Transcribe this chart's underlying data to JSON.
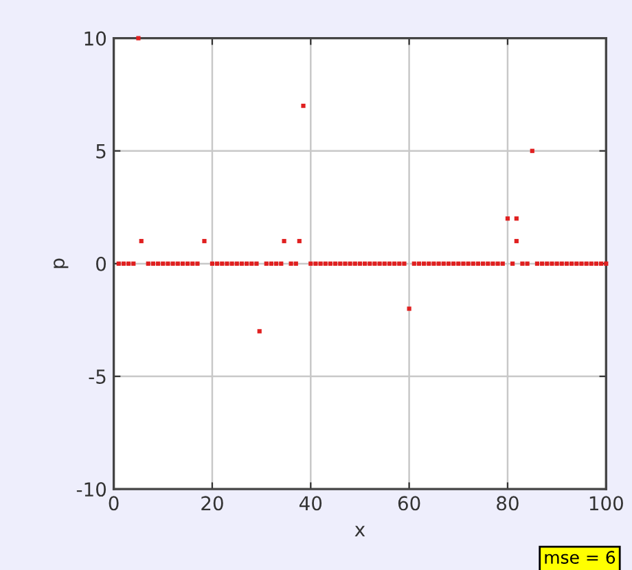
{
  "chart_data": {
    "type": "scatter",
    "xlabel": "x",
    "ylabel": "p",
    "xlim": [
      0,
      100
    ],
    "ylim": [
      -10,
      10
    ],
    "xticks": [
      0,
      20,
      40,
      60,
      80,
      100
    ],
    "yticks": [
      -10,
      -5,
      0,
      5,
      10
    ],
    "grid": true,
    "marker": "square",
    "annotations": [
      "mse = 6"
    ],
    "series": [
      {
        "color": "#e02020",
        "x": [
          1,
          2,
          3,
          4,
          7,
          8,
          9,
          10,
          11,
          12,
          13,
          14,
          15,
          16,
          17,
          20,
          21,
          22,
          23,
          24,
          25,
          26,
          27,
          28,
          29,
          31,
          32,
          33,
          34,
          36,
          37,
          40,
          41,
          42,
          43,
          44,
          45,
          46,
          47,
          48,
          49,
          50,
          51,
          52,
          53,
          54,
          55,
          56,
          57,
          58,
          59,
          61,
          62,
          63,
          64,
          65,
          66,
          67,
          68,
          69,
          70,
          71,
          72,
          73,
          74,
          75,
          76,
          77,
          78,
          79,
          81,
          83,
          84,
          86,
          87,
          88,
          89,
          90,
          91,
          92,
          93,
          94,
          95,
          96,
          97,
          98,
          99,
          100
        ],
        "values": [
          0,
          0,
          0,
          0,
          0,
          0,
          0,
          0,
          0,
          0,
          0,
          0,
          0,
          0,
          0,
          0,
          0,
          0,
          0,
          0,
          0,
          0,
          0,
          0,
          0,
          0,
          0,
          0,
          0,
          0,
          0,
          0,
          0,
          0,
          0,
          0,
          0,
          0,
          0,
          0,
          0,
          0,
          0,
          0,
          0,
          0,
          0,
          0,
          0,
          0,
          0,
          0,
          0,
          0,
          0,
          0,
          0,
          0,
          0,
          0,
          0,
          0,
          0,
          0,
          0,
          0,
          0,
          0,
          0,
          0,
          0,
          0,
          0,
          0,
          0,
          0,
          0,
          0,
          0,
          0,
          0,
          0,
          0,
          0,
          0,
          0,
          0,
          0
        ]
      },
      {
        "color": "#e02020",
        "x": [
          5,
          5.6,
          18.4,
          29.6,
          34.6,
          37.7,
          38.5,
          60,
          80,
          81.8,
          81.8,
          85
        ],
        "values": [
          10,
          1,
          1,
          -3,
          1,
          1,
          7,
          -2,
          2,
          2,
          1,
          5
        ]
      }
    ]
  }
}
